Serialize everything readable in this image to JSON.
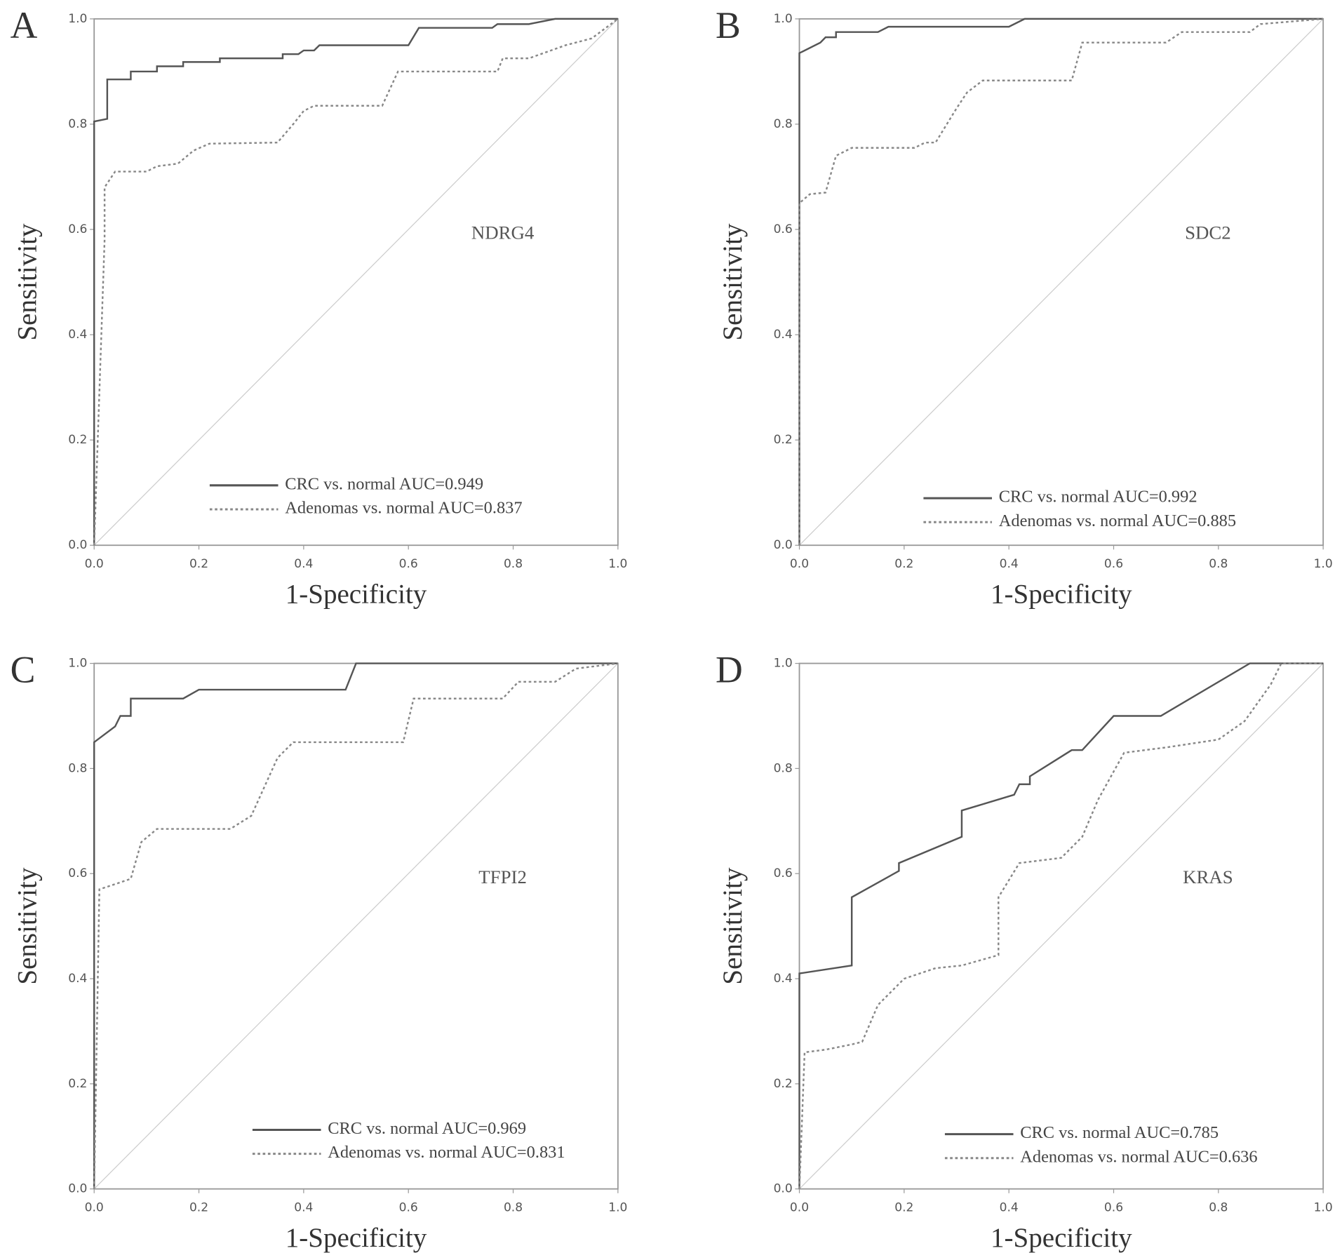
{
  "chart_data": [
    {
      "type": "line",
      "panel": "A",
      "gene": "NDRG4",
      "x_label": "1-Specificity",
      "y_label": "Sensitivity",
      "xlim": [
        0,
        1
      ],
      "ylim": [
        0,
        1
      ],
      "xticks": [
        {
          "value": 0,
          "label": "0.0"
        },
        0.2,
        0.4,
        0.6,
        0.8,
        {
          "value": 1,
          "label": "1.0"
        }
      ],
      "yticks": [
        {
          "value": 0,
          "label": "0.0"
        },
        0.2,
        0.4,
        0.6,
        0.8,
        {
          "value": 1,
          "label": "1.0"
        }
      ],
      "series": [
        {
          "name": "CRC vs. normal AUC=0.949",
          "color": "#555555",
          "style": "solid",
          "x": [
            0,
            0,
            0.025,
            0.025,
            0.07,
            0.07,
            0.12,
            0.12,
            0.17,
            0.17,
            0.24,
            0.24,
            0.36,
            0.36,
            0.39,
            0.4,
            0.42,
            0.43,
            0.6,
            0.62,
            0.76,
            0.77,
            0.83,
            0.88,
            1
          ],
          "values": [
            0,
            0.805,
            0.81,
            0.885,
            0.885,
            0.9,
            0.9,
            0.91,
            0.91,
            0.918,
            0.918,
            0.925,
            0.925,
            0.933,
            0.933,
            0.94,
            0.94,
            0.95,
            0.95,
            0.983,
            0.983,
            0.99,
            0.99,
            1,
            1
          ]
        },
        {
          "name": "Adenomas vs. normal AUC=0.837",
          "color": "#888888",
          "style": "dotted",
          "x": [
            0,
            0.02,
            0.02,
            0.04,
            0.1,
            0.12,
            0.16,
            0.19,
            0.22,
            0.35,
            0.38,
            0.4,
            0.42,
            0.55,
            0.58,
            0.77,
            0.78,
            0.83,
            0.9,
            0.95,
            1
          ],
          "values": [
            0,
            0.58,
            0.68,
            0.71,
            0.71,
            0.72,
            0.725,
            0.75,
            0.763,
            0.765,
            0.8,
            0.825,
            0.835,
            0.835,
            0.9,
            0.9,
            0.925,
            0.925,
            0.95,
            0.963,
            1
          ]
        }
      ]
    },
    {
      "type": "line",
      "panel": "B",
      "gene": "SDC2",
      "x_label": "1-Specificity",
      "y_label": "Sensitivity",
      "xlim": [
        0,
        1
      ],
      "ylim": [
        0,
        1
      ],
      "xticks": [
        {
          "value": 0,
          "label": "0.0"
        },
        0.2,
        0.4,
        0.6,
        0.8,
        {
          "value": 1,
          "label": "1.0"
        }
      ],
      "yticks": [
        {
          "value": 0,
          "label": "0.0"
        },
        0.2,
        0.4,
        0.6,
        0.8,
        {
          "value": 1,
          "label": "1.0"
        }
      ],
      "series": [
        {
          "name": "CRC vs. normal AUC=0.992",
          "color": "#555555",
          "style": "solid",
          "x": [
            0,
            0,
            0.04,
            0.05,
            0.07,
            0.07,
            0.15,
            0.17,
            0.4,
            0.43,
            1
          ],
          "values": [
            0,
            0.935,
            0.955,
            0.965,
            0.965,
            0.975,
            0.975,
            0.985,
            0.985,
            1,
            1
          ]
        },
        {
          "name": "Adenomas vs. normal AUC=0.885",
          "color": "#888888",
          "style": "dotted",
          "x": [
            0,
            0,
            0.02,
            0.05,
            0.07,
            0.1,
            0.22,
            0.24,
            0.26,
            0.3,
            0.32,
            0.35,
            0.52,
            0.54,
            0.7,
            0.73,
            0.86,
            0.88,
            1
          ],
          "values": [
            0,
            0.65,
            0.667,
            0.67,
            0.74,
            0.755,
            0.755,
            0.765,
            0.765,
            0.83,
            0.86,
            0.883,
            0.883,
            0.955,
            0.955,
            0.975,
            0.975,
            0.99,
            1
          ]
        }
      ]
    },
    {
      "type": "line",
      "panel": "C",
      "gene": "TFPI2",
      "x_label": "1-Specificity",
      "y_label": "Sensitivity",
      "xlim": [
        0,
        1
      ],
      "ylim": [
        0,
        1
      ],
      "xticks": [
        {
          "value": 0,
          "label": "0.0"
        },
        0.2,
        0.4,
        0.6,
        0.8,
        {
          "value": 1,
          "label": "1.0"
        }
      ],
      "yticks": [
        {
          "value": 0,
          "label": "0.0"
        },
        0.2,
        0.4,
        0.6,
        0.8,
        {
          "value": 1,
          "label": "1.0"
        }
      ],
      "series": [
        {
          "name": "CRC vs. normal AUC=0.969",
          "color": "#555555",
          "style": "solid",
          "x": [
            0,
            0,
            0.04,
            0.05,
            0.07,
            0.07,
            0.17,
            0.2,
            0.48,
            0.5,
            1
          ],
          "values": [
            0,
            0.85,
            0.88,
            0.9,
            0.9,
            0.933,
            0.933,
            0.95,
            0.95,
            1,
            1
          ]
        },
        {
          "name": "Adenomas vs. normal AUC=0.831",
          "color": "#888888",
          "style": "dotted",
          "x": [
            0,
            0.01,
            0.04,
            0.07,
            0.09,
            0.12,
            0.26,
            0.3,
            0.35,
            0.38,
            0.59,
            0.61,
            0.78,
            0.81,
            0.88,
            0.92,
            1
          ],
          "values": [
            0,
            0.57,
            0.58,
            0.59,
            0.66,
            0.685,
            0.685,
            0.71,
            0.82,
            0.85,
            0.85,
            0.933,
            0.933,
            0.965,
            0.965,
            0.99,
            1
          ]
        }
      ]
    },
    {
      "type": "line",
      "panel": "D",
      "gene": "KRAS",
      "x_label": "1-Specificity",
      "y_label": "Sensitivity",
      "xlim": [
        0,
        1
      ],
      "ylim": [
        0,
        1
      ],
      "xticks": [
        {
          "value": 0,
          "label": "0.0"
        },
        0.2,
        0.4,
        0.6,
        0.8,
        {
          "value": 1,
          "label": "1.0"
        }
      ],
      "yticks": [
        {
          "value": 0,
          "label": "0.0"
        },
        0.2,
        0.4,
        0.6,
        0.8,
        {
          "value": 1,
          "label": "1.0"
        }
      ],
      "series": [
        {
          "name": "CRC vs. normal AUC=0.785",
          "color": "#555555",
          "style": "solid",
          "x": [
            0,
            0,
            0.1,
            0.1,
            0.19,
            0.19,
            0.31,
            0.31,
            0.41,
            0.42,
            0.44,
            0.44,
            0.52,
            0.54,
            0.6,
            0.69,
            0.86,
            1
          ],
          "values": [
            0,
            0.41,
            0.425,
            0.555,
            0.605,
            0.62,
            0.67,
            0.72,
            0.75,
            0.77,
            0.77,
            0.785,
            0.835,
            0.835,
            0.9,
            0.9,
            1,
            1
          ]
        },
        {
          "name": "Adenomas vs. normal AUC=0.636",
          "color": "#888888",
          "style": "dotted",
          "x": [
            0,
            0.01,
            0.05,
            0.1,
            0.12,
            0.15,
            0.2,
            0.26,
            0.31,
            0.38,
            0.38,
            0.42,
            0.5,
            0.54,
            0.57,
            0.62,
            0.7,
            0.8,
            0.85,
            0.9,
            0.92,
            1
          ],
          "values": [
            0,
            0.26,
            0.265,
            0.275,
            0.28,
            0.35,
            0.4,
            0.42,
            0.425,
            0.445,
            0.555,
            0.62,
            0.63,
            0.67,
            0.74,
            0.83,
            0.84,
            0.855,
            0.89,
            0.96,
            1,
            1
          ]
        }
      ]
    }
  ]
}
